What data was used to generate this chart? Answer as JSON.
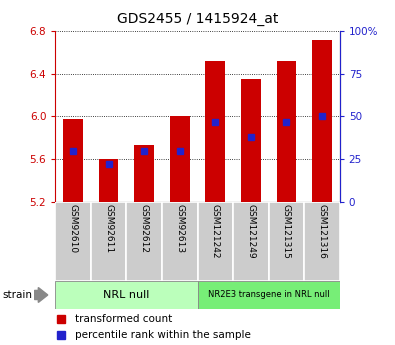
{
  "title": "GDS2455 / 1415924_at",
  "samples": [
    "GSM92610",
    "GSM92611",
    "GSM92612",
    "GSM92613",
    "GSM121242",
    "GSM121249",
    "GSM121315",
    "GSM121316"
  ],
  "bar_values": [
    5.98,
    5.6,
    5.73,
    6.0,
    6.52,
    6.35,
    6.52,
    6.72
  ],
  "percentile_values": [
    30,
    22,
    30,
    30,
    47,
    38,
    47,
    50
  ],
  "ymin": 5.2,
  "ymax": 6.8,
  "yticks": [
    5.2,
    5.6,
    6.0,
    6.4,
    6.8
  ],
  "right_yticks": [
    0,
    25,
    50,
    75,
    100
  ],
  "bar_color": "#cc0000",
  "blue_color": "#2222cc",
  "group1_label": "NRL null",
  "group2_label": "NR2E3 transgene in NRL null",
  "group1_bg": "#bbffbb",
  "group2_bg": "#77ee77",
  "label_bg": "#cccccc",
  "strain_label": "strain",
  "legend_transformed": "transformed count",
  "legend_percentile": "percentile rank within the sample",
  "title_fontsize": 10,
  "tick_fontsize": 7.5,
  "sample_fontsize": 6.5,
  "group_fontsize": 8,
  "legend_fontsize": 7.5
}
